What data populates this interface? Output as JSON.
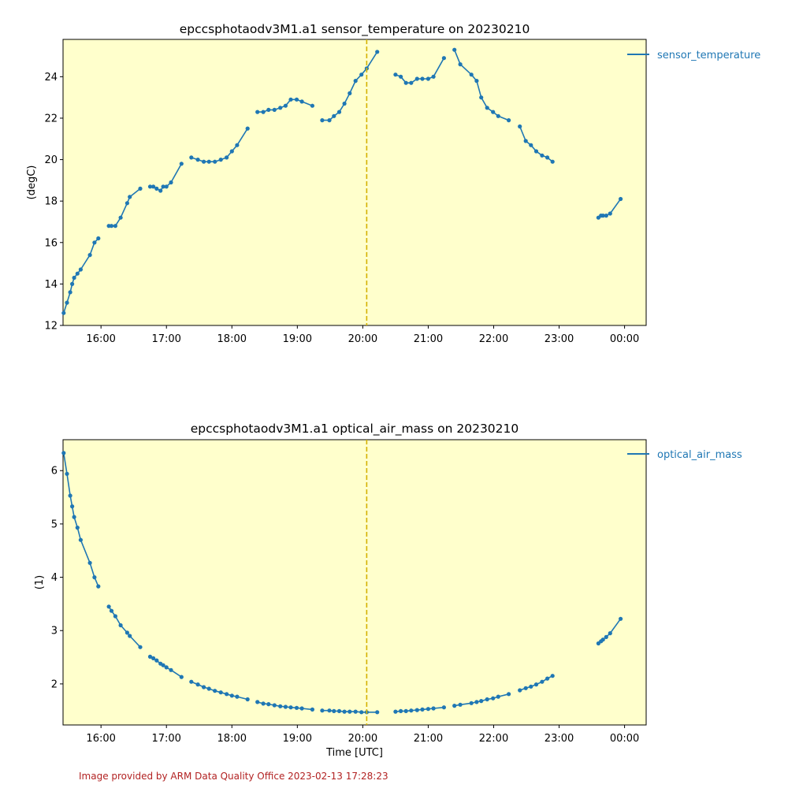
{
  "footer": "Image provided by ARM Data Quality Office 2023-02-13 17:28:23",
  "style": {
    "series_color": "#1f77b4",
    "plot_background": "#ffffcc",
    "reference_line_color": "#d4b200",
    "footer_color": "#b22222"
  },
  "chart_data": [
    {
      "type": "line",
      "title": "epccsphotaodv3M1.a1 sensor_temperature on 20230210",
      "xlabel": "",
      "ylabel": "(degC)",
      "xlim": [
        15.42,
        24.33
      ],
      "ylim": [
        12.0,
        25.8
      ],
      "x_ticks": [
        16,
        17,
        18,
        19,
        20,
        21,
        22,
        23,
        24
      ],
      "x_tick_labels": [
        "16:00",
        "17:00",
        "18:00",
        "19:00",
        "20:00",
        "21:00",
        "22:00",
        "23:00",
        "00:00"
      ],
      "y_ticks": [
        12,
        14,
        16,
        18,
        20,
        22,
        24
      ],
      "y_tick_labels": [
        "12",
        "14",
        "16",
        "18",
        "20",
        "22",
        "24"
      ],
      "show_x_tick_labels": true,
      "reference_line_x": 20.06,
      "legend_location": "outside-top-right",
      "series": [
        {
          "name": "sensor_temperature",
          "segments": [
            [
              [
                15.43,
                12.6
              ],
              [
                15.48,
                13.1
              ],
              [
                15.53,
                13.6
              ],
              [
                15.56,
                14.0
              ],
              [
                15.59,
                14.3
              ],
              [
                15.64,
                14.5
              ],
              [
                15.69,
                14.7
              ],
              [
                15.83,
                15.4
              ],
              [
                15.9,
                16.0
              ],
              [
                15.96,
                16.2
              ]
            ],
            [
              [
                16.12,
                16.8
              ],
              [
                16.16,
                16.8
              ],
              [
                16.22,
                16.8
              ],
              [
                16.3,
                17.2
              ],
              [
                16.4,
                17.9
              ],
              [
                16.44,
                18.2
              ],
              [
                16.6,
                18.6
              ]
            ],
            [
              [
                16.75,
                18.7
              ],
              [
                16.8,
                18.7
              ],
              [
                16.85,
                18.6
              ],
              [
                16.91,
                18.5
              ],
              [
                16.95,
                18.7
              ],
              [
                17.0,
                18.7
              ],
              [
                17.07,
                18.9
              ],
              [
                17.23,
                19.8
              ]
            ],
            [
              [
                17.38,
                20.1
              ],
              [
                17.48,
                20.0
              ],
              [
                17.57,
                19.9
              ],
              [
                17.65,
                19.9
              ],
              [
                17.74,
                19.9
              ],
              [
                17.83,
                20.0
              ],
              [
                17.92,
                20.1
              ],
              [
                18.0,
                20.4
              ],
              [
                18.08,
                20.7
              ],
              [
                18.24,
                21.5
              ]
            ],
            [
              [
                18.39,
                22.3
              ],
              [
                18.48,
                22.3
              ],
              [
                18.56,
                22.4
              ],
              [
                18.65,
                22.4
              ],
              [
                18.74,
                22.5
              ],
              [
                18.82,
                22.6
              ],
              [
                18.9,
                22.9
              ],
              [
                18.99,
                22.9
              ],
              [
                19.07,
                22.8
              ],
              [
                19.23,
                22.6
              ]
            ],
            [
              [
                19.38,
                21.9
              ],
              [
                19.49,
                21.9
              ],
              [
                19.56,
                22.1
              ],
              [
                19.64,
                22.3
              ],
              [
                19.72,
                22.7
              ],
              [
                19.8,
                23.2
              ],
              [
                19.89,
                23.8
              ],
              [
                19.98,
                24.1
              ],
              [
                20.06,
                24.4
              ],
              [
                20.22,
                25.2
              ]
            ],
            [
              [
                20.5,
                24.1
              ],
              [
                20.58,
                24.0
              ],
              [
                20.66,
                23.7
              ],
              [
                20.74,
                23.7
              ],
              [
                20.83,
                23.9
              ],
              [
                20.91,
                23.9
              ],
              [
                21.0,
                23.9
              ],
              [
                21.08,
                24.0
              ],
              [
                21.24,
                24.9
              ]
            ],
            [
              [
                21.4,
                25.3
              ],
              [
                21.49,
                24.6
              ],
              [
                21.66,
                24.1
              ],
              [
                21.74,
                23.8
              ],
              [
                21.81,
                23.0
              ],
              [
                21.9,
                22.5
              ],
              [
                21.99,
                22.3
              ],
              [
                22.07,
                22.1
              ],
              [
                22.23,
                21.9
              ]
            ],
            [
              [
                22.4,
                21.6
              ],
              [
                22.49,
                20.9
              ],
              [
                22.57,
                20.7
              ],
              [
                22.65,
                20.4
              ],
              [
                22.74,
                20.2
              ],
              [
                22.82,
                20.1
              ],
              [
                22.9,
                19.9
              ]
            ],
            [
              [
                23.6,
                17.2
              ],
              [
                23.64,
                17.3
              ],
              [
                23.67,
                17.3
              ],
              [
                23.72,
                17.3
              ],
              [
                23.78,
                17.4
              ],
              [
                23.94,
                18.1
              ]
            ]
          ]
        }
      ]
    },
    {
      "type": "line",
      "title": "epccsphotaodv3M1.a1 optical_air_mass on 20230210",
      "xlabel": "Time [UTC]",
      "ylabel": "(1)",
      "xlim": [
        15.42,
        24.33
      ],
      "ylim": [
        1.23,
        6.58
      ],
      "x_ticks": [
        16,
        17,
        18,
        19,
        20,
        21,
        22,
        23,
        24
      ],
      "x_tick_labels": [
        "16:00",
        "17:00",
        "18:00",
        "19:00",
        "20:00",
        "21:00",
        "22:00",
        "23:00",
        "00:00"
      ],
      "y_ticks": [
        2,
        3,
        4,
        5,
        6
      ],
      "y_tick_labels": [
        "2",
        "3",
        "4",
        "5",
        "6"
      ],
      "show_x_tick_labels": true,
      "reference_line_x": 20.06,
      "legend_location": "outside-top-right",
      "series": [
        {
          "name": "optical_air_mass",
          "segments": [
            [
              [
                15.43,
                6.33
              ],
              [
                15.48,
                5.94
              ],
              [
                15.53,
                5.53
              ],
              [
                15.56,
                5.33
              ],
              [
                15.59,
                5.13
              ],
              [
                15.64,
                4.93
              ],
              [
                15.69,
                4.7
              ],
              [
                15.83,
                4.27
              ],
              [
                15.9,
                4.0
              ],
              [
                15.96,
                3.83
              ]
            ],
            [
              [
                16.12,
                3.45
              ],
              [
                16.16,
                3.37
              ],
              [
                16.22,
                3.27
              ],
              [
                16.3,
                3.1
              ],
              [
                16.4,
                2.96
              ],
              [
                16.44,
                2.9
              ],
              [
                16.6,
                2.69
              ]
            ],
            [
              [
                16.75,
                2.51
              ],
              [
                16.8,
                2.48
              ],
              [
                16.85,
                2.44
              ],
              [
                16.91,
                2.38
              ],
              [
                16.95,
                2.35
              ],
              [
                17.0,
                2.31
              ],
              [
                17.07,
                2.26
              ],
              [
                17.23,
                2.13
              ]
            ],
            [
              [
                17.38,
                2.04
              ],
              [
                17.48,
                1.99
              ],
              [
                17.57,
                1.94
              ],
              [
                17.65,
                1.91
              ],
              [
                17.74,
                1.87
              ],
              [
                17.83,
                1.84
              ],
              [
                17.92,
                1.81
              ],
              [
                18.0,
                1.78
              ],
              [
                18.08,
                1.76
              ],
              [
                18.24,
                1.71
              ]
            ],
            [
              [
                18.39,
                1.66
              ],
              [
                18.48,
                1.63
              ],
              [
                18.56,
                1.62
              ],
              [
                18.65,
                1.6
              ],
              [
                18.74,
                1.58
              ],
              [
                18.82,
                1.57
              ],
              [
                18.9,
                1.56
              ],
              [
                18.99,
                1.55
              ],
              [
                19.07,
                1.54
              ],
              [
                19.23,
                1.52
              ]
            ],
            [
              [
                19.38,
                1.5
              ],
              [
                19.49,
                1.5
              ],
              [
                19.56,
                1.49
              ],
              [
                19.64,
                1.49
              ],
              [
                19.72,
                1.48
              ],
              [
                19.8,
                1.48
              ],
              [
                19.89,
                1.48
              ],
              [
                19.98,
                1.47
              ],
              [
                20.06,
                1.47
              ],
              [
                20.22,
                1.47
              ]
            ],
            [
              [
                20.5,
                1.48
              ],
              [
                20.58,
                1.49
              ],
              [
                20.66,
                1.49
              ],
              [
                20.74,
                1.5
              ],
              [
                20.83,
                1.51
              ],
              [
                20.91,
                1.52
              ],
              [
                21.0,
                1.53
              ],
              [
                21.08,
                1.54
              ],
              [
                21.24,
                1.56
              ]
            ],
            [
              [
                21.4,
                1.59
              ],
              [
                21.49,
                1.61
              ],
              [
                21.66,
                1.64
              ],
              [
                21.74,
                1.66
              ],
              [
                21.81,
                1.68
              ],
              [
                21.9,
                1.71
              ],
              [
                21.99,
                1.73
              ],
              [
                22.07,
                1.76
              ],
              [
                22.23,
                1.81
              ]
            ],
            [
              [
                22.4,
                1.88
              ],
              [
                22.49,
                1.92
              ],
              [
                22.57,
                1.95
              ],
              [
                22.65,
                1.99
              ],
              [
                22.74,
                2.04
              ],
              [
                22.82,
                2.1
              ],
              [
                22.9,
                2.15
              ]
            ],
            [
              [
                23.6,
                2.76
              ],
              [
                23.64,
                2.8
              ],
              [
                23.67,
                2.83
              ],
              [
                23.72,
                2.88
              ],
              [
                23.78,
                2.95
              ],
              [
                23.94,
                3.22
              ]
            ]
          ]
        }
      ]
    }
  ]
}
